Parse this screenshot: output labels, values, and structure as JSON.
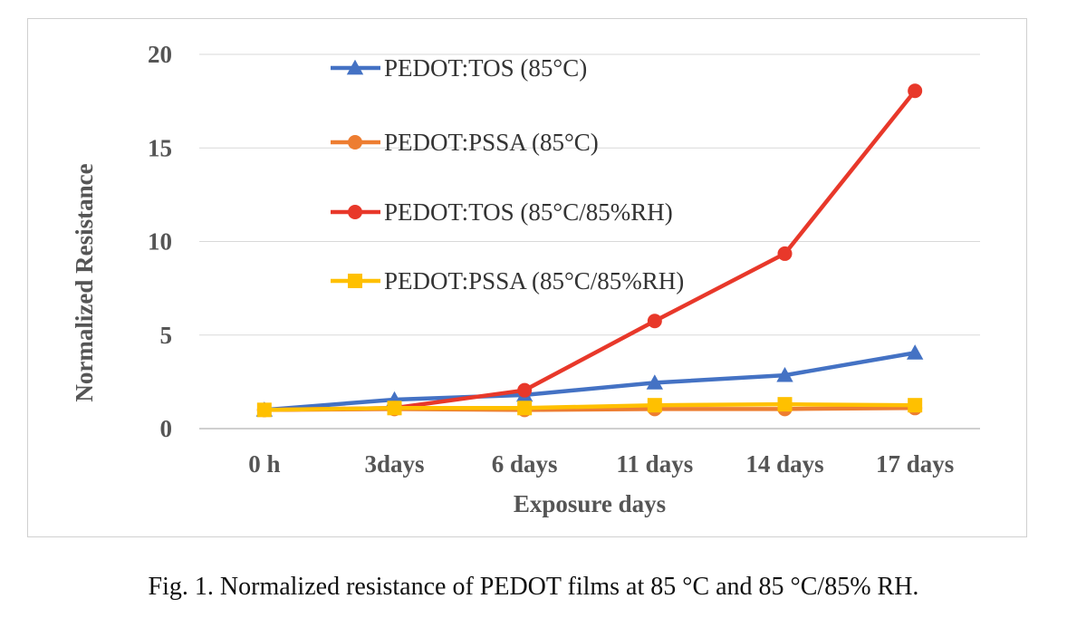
{
  "caption": "Fig. 1. Normalized resistance of PEDOT films at 85 °C and 85 °C/85% RH.",
  "chart_data": {
    "type": "line",
    "title": "",
    "xlabel": "Exposure days",
    "ylabel": "Normalized Resistance",
    "categories": [
      "0 h",
      "3days",
      "6 days",
      "11 days",
      "14 days",
      "17 days"
    ],
    "ylim": [
      0,
      20
    ],
    "yticks": [
      0,
      5,
      10,
      15,
      20
    ],
    "grid": true,
    "legend_placement": "top-left",
    "series": [
      {
        "name": "PEDOT:TOS (85°C)",
        "color": "#4472c4",
        "marker": "triangle",
        "values": [
          1.0,
          1.55,
          1.8,
          2.45,
          2.85,
          4.05
        ]
      },
      {
        "name": "PEDOT:PSSA (85°C)",
        "color": "#ed7d31",
        "marker": "circle",
        "values": [
          1.0,
          1.05,
          1.0,
          1.05,
          1.05,
          1.1
        ]
      },
      {
        "name": "PEDOT:TOS (85°C/85%RH)",
        "color": "#e8382a",
        "marker": "circle",
        "values": [
          1.0,
          1.1,
          2.05,
          5.75,
          9.35,
          18.05
        ]
      },
      {
        "name": "PEDOT:PSSA (85°C/85%RH)",
        "color": "#ffc000",
        "marker": "square",
        "values": [
          1.0,
          1.1,
          1.1,
          1.25,
          1.3,
          1.25
        ]
      }
    ]
  }
}
